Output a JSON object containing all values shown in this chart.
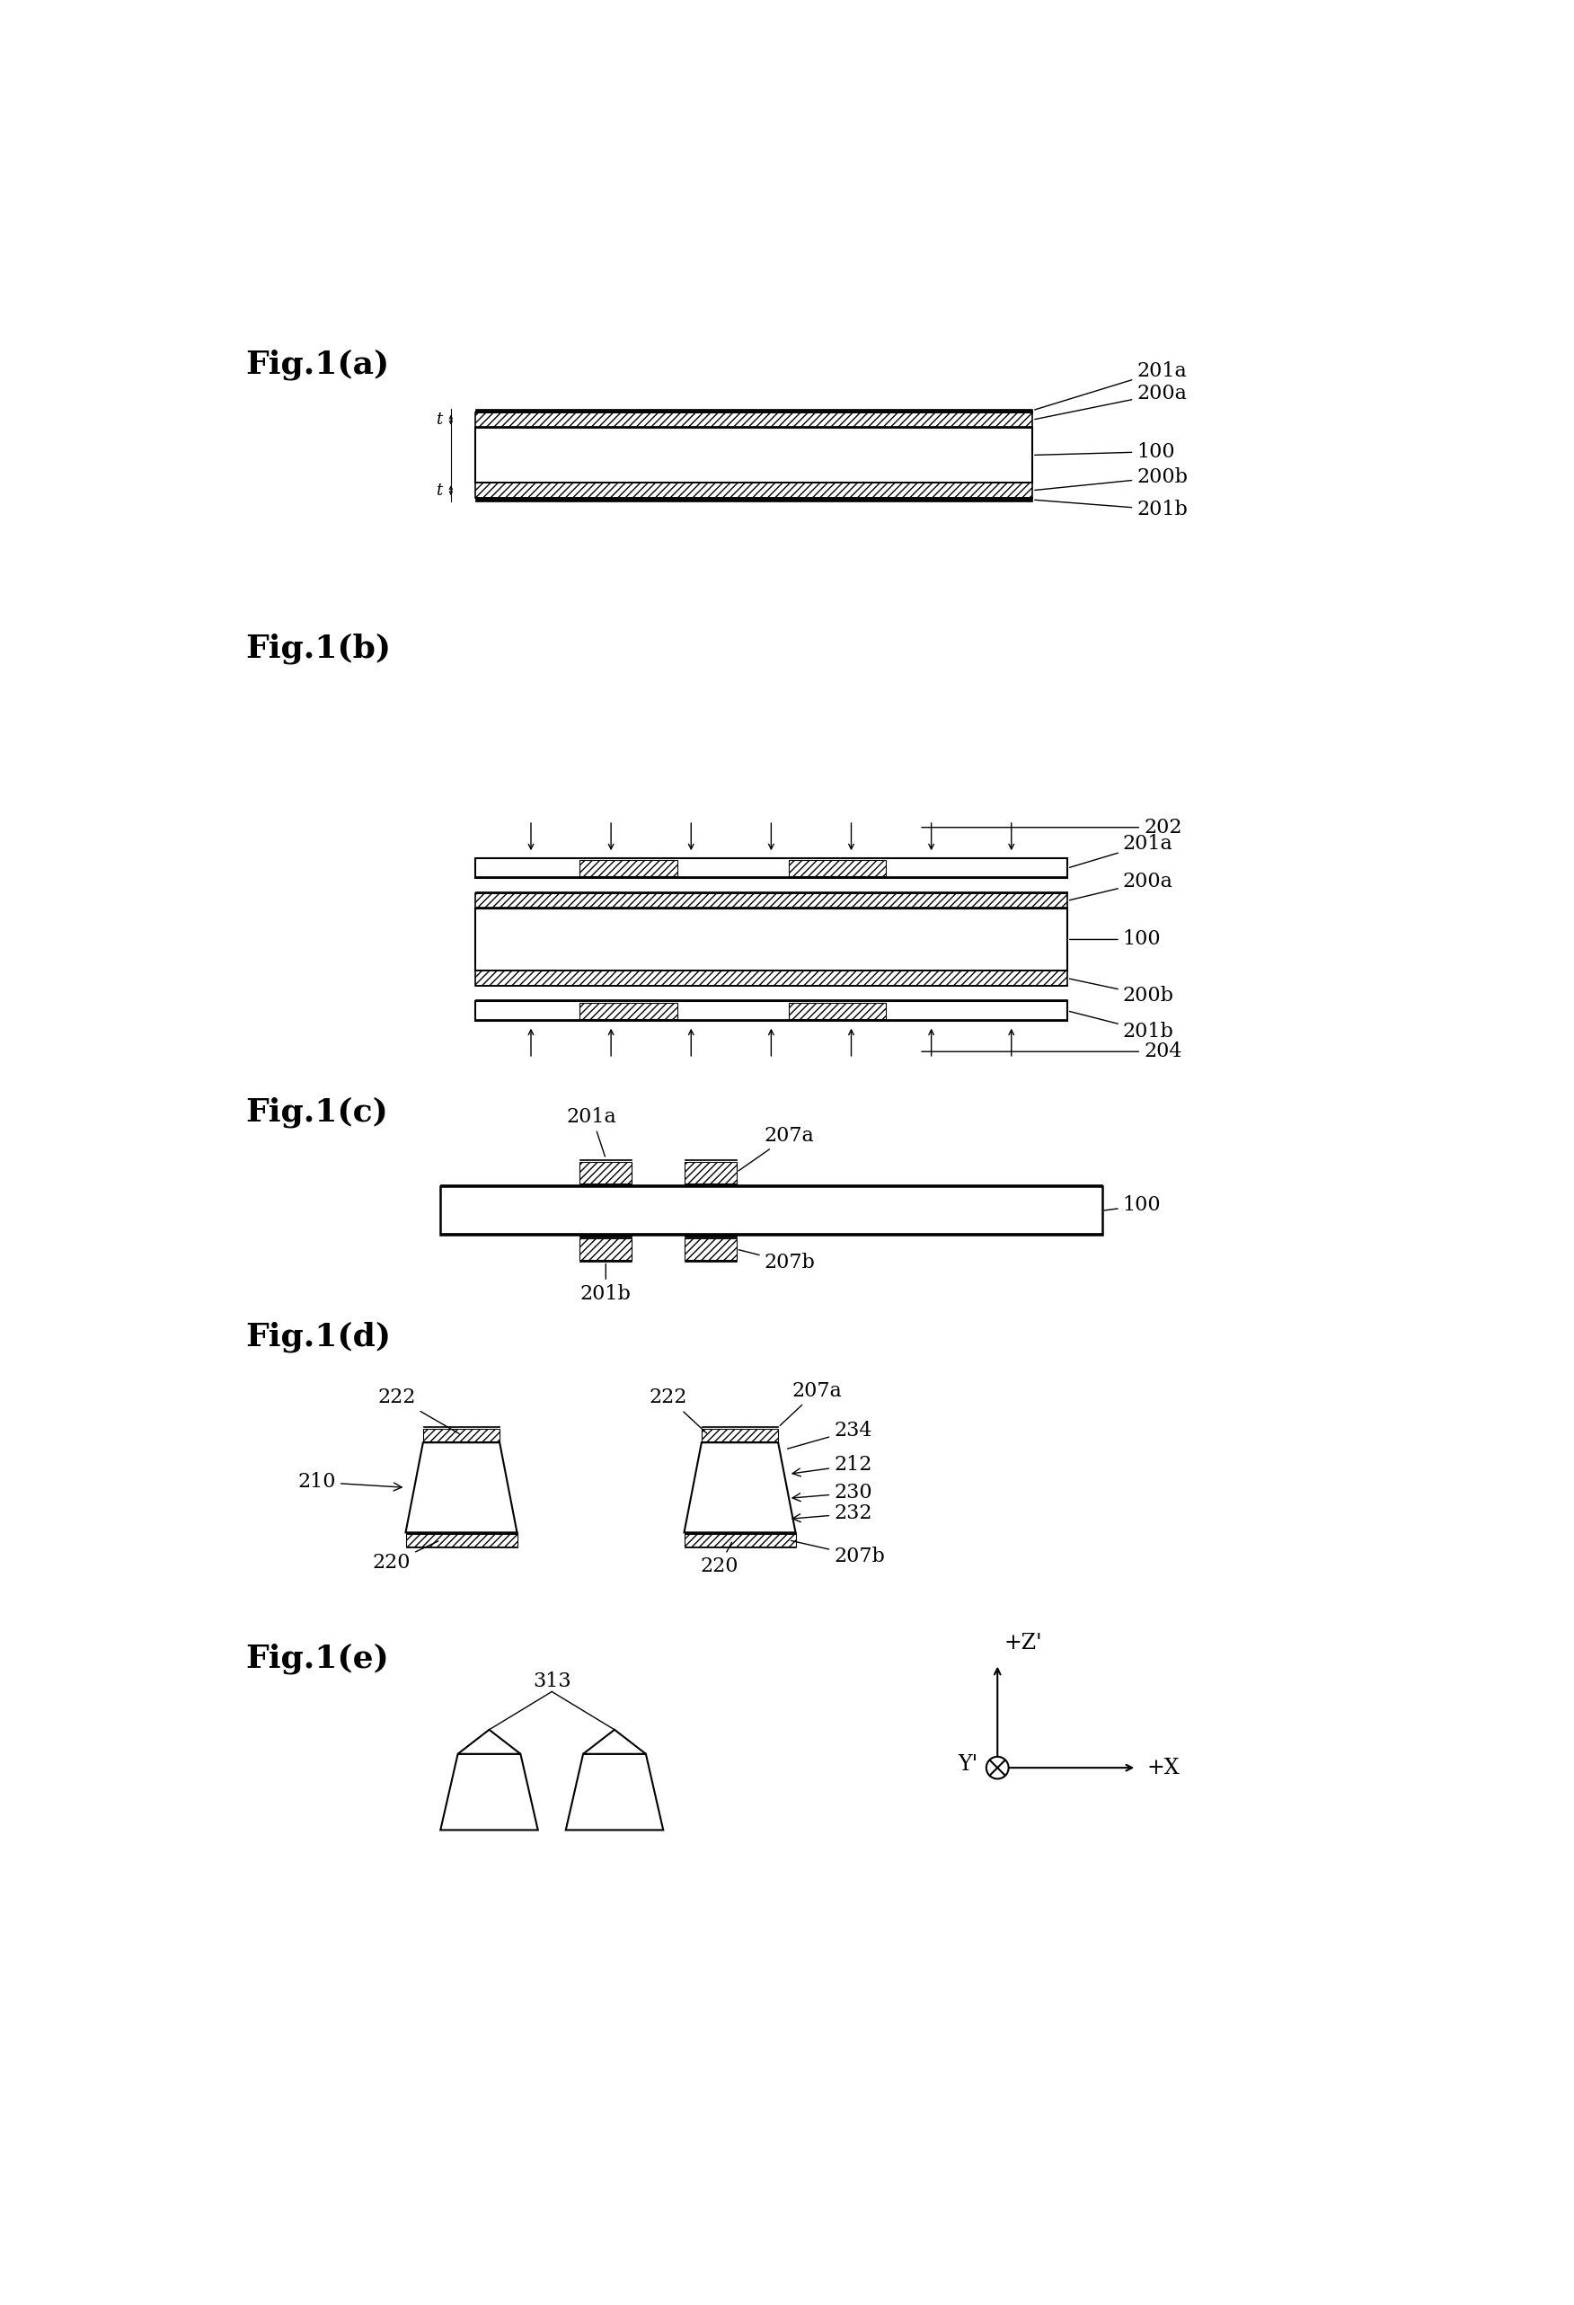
{
  "background": "#ffffff",
  "fig_label_fontsize": 26,
  "annotation_fontsize": 16,
  "fig_labels": [
    "Fig.1(a)",
    "Fig.1(b)",
    "Fig.1(c)",
    "Fig.1(d)",
    "Fig.1(e)"
  ]
}
